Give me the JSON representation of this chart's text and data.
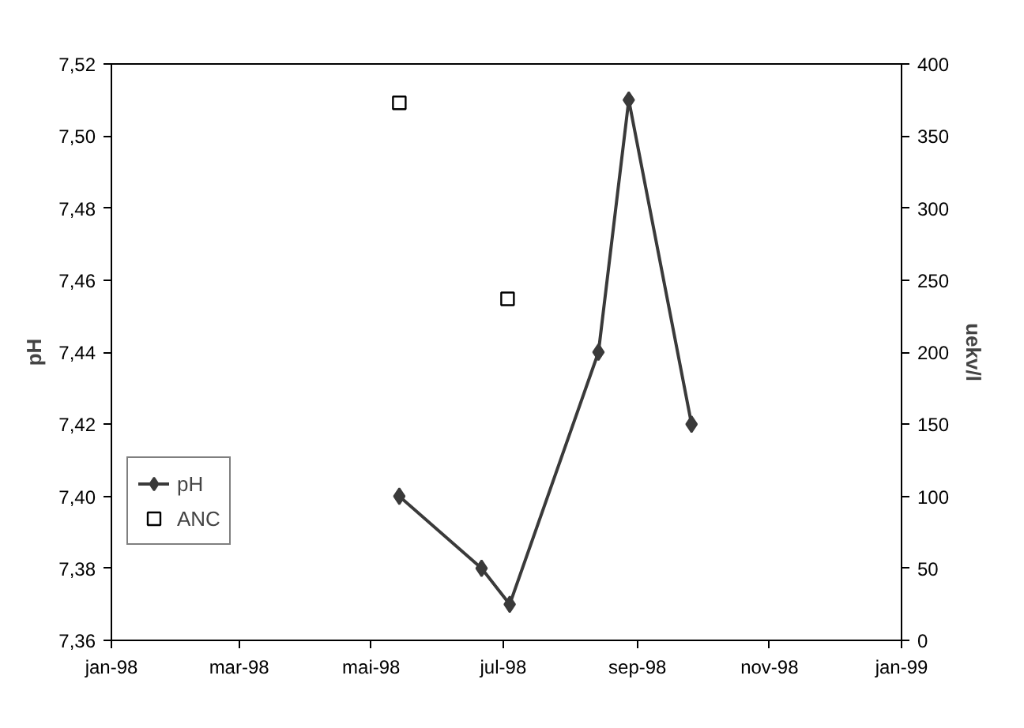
{
  "chart_data": {
    "type": "line",
    "ylabel": "pH",
    "y2label": "uekv/l",
    "series": [
      {
        "name": "pH",
        "color": "#3a3a3a",
        "marker": "diamond",
        "x": [
          "1998-05-14",
          "1998-06-21",
          "1998-07-04",
          "1998-08-14",
          "1998-08-28",
          "1998-09-26"
        ],
        "values": [
          7.4,
          7.38,
          7.37,
          7.44,
          7.51,
          7.42
        ]
      },
      {
        "name": "ANC",
        "type": "scatter",
        "color": "#000000",
        "marker": "square",
        "axis": "y2",
        "x": [
          "1998-05-14",
          "1998-07-03"
        ],
        "values": [
          373,
          237
        ]
      }
    ],
    "xlim": [
      "1998-01-01",
      "1999-01-01"
    ],
    "xticks": [
      {
        "value": "1998-01-01",
        "label": "jan-98"
      },
      {
        "value": "1998-03-01",
        "label": "mar-98"
      },
      {
        "value": "1998-05-01",
        "label": "mai-98"
      },
      {
        "value": "1998-07-01",
        "label": "jul-98"
      },
      {
        "value": "1998-09-01",
        "label": "sep-98"
      },
      {
        "value": "1998-11-01",
        "label": "nov-98"
      },
      {
        "value": "1999-01-01",
        "label": "jan-99"
      }
    ],
    "ylim": [
      7.36,
      7.52
    ],
    "yticks": [
      {
        "value": 7.36,
        "label": "7,36"
      },
      {
        "value": 7.38,
        "label": "7,38"
      },
      {
        "value": 7.4,
        "label": "7,40"
      },
      {
        "value": 7.42,
        "label": "7,42"
      },
      {
        "value": 7.44,
        "label": "7,44"
      },
      {
        "value": 7.46,
        "label": "7,46"
      },
      {
        "value": 7.48,
        "label": "7,48"
      },
      {
        "value": 7.5,
        "label": "7,50"
      },
      {
        "value": 7.52,
        "label": "7,52"
      }
    ],
    "y2lim": [
      0,
      400
    ],
    "y2ticks": [
      0,
      50,
      100,
      150,
      200,
      250,
      300,
      350,
      400
    ],
    "grid": false,
    "legend": "left"
  }
}
